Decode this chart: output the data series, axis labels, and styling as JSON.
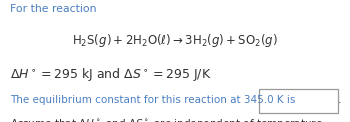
{
  "bg_color": "#ffffff",
  "text_color": "#333333",
  "blue_color": "#4a7fc1",
  "line1": "For the reaction",
  "eq": "$\\mathrm{H_2S}(g) + 2\\mathrm{H_2O}(\\ell) \\rightarrow 3\\mathrm{H_2}(g) + \\mathrm{SO_2}(g)$",
  "line3": "$\\Delta H^\\circ = 295\\ \\mathrm{kJ\\ and}\\ \\Delta S^\\circ = 295\\ \\mathrm{J/K}$",
  "line4": "The equilibrium constant for this reaction at 345.0 K is",
  "line5": "Assume that $\\Delta H^\\circ$ and $\\Delta S^\\circ$ are independent of temperature.",
  "figsize": [
    3.5,
    1.22
  ],
  "dpi": 100
}
